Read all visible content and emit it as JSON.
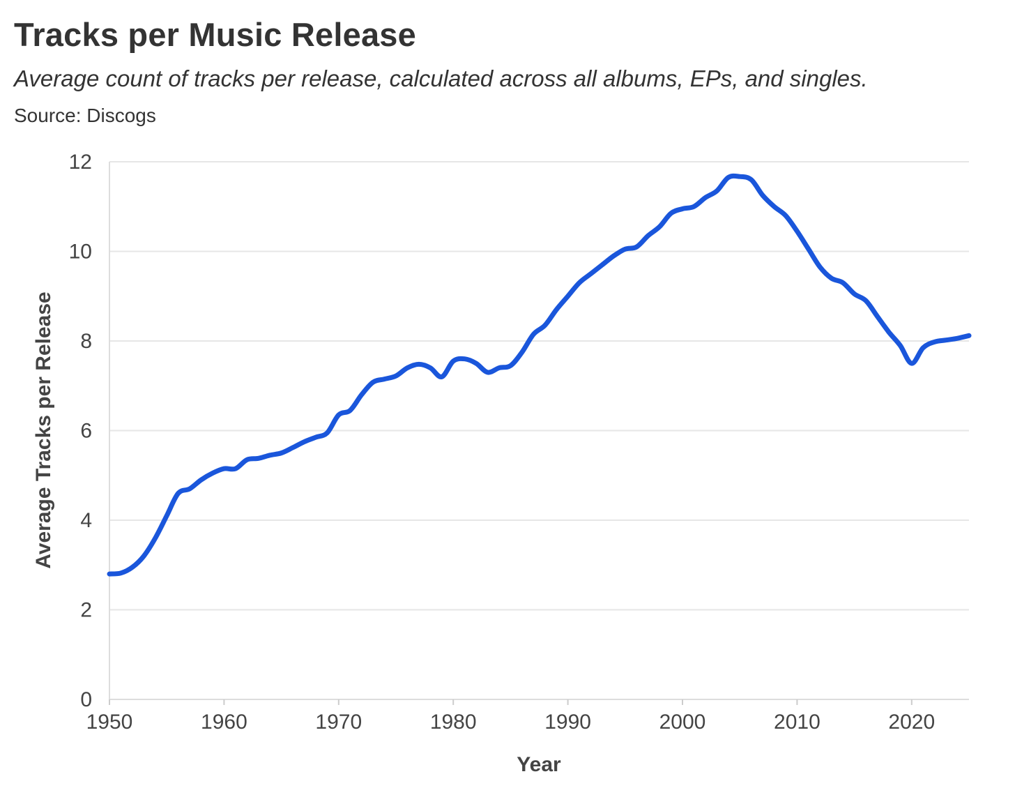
{
  "title": "Tracks per Music Release",
  "subtitle": "Average count of tracks per release, calculated across all albums, EPs, and singles.",
  "source": "Source: Discogs",
  "colors": {
    "line": "#1a56db",
    "grid": "#e6e6e6",
    "text": "#333333"
  },
  "chart_data": {
    "type": "line",
    "title": "Tracks per Music Release",
    "xlabel": "Year",
    "ylabel": "Average Tracks per Release",
    "xlim": [
      1950,
      2025
    ],
    "ylim": [
      0,
      12
    ],
    "xticks": [
      1950,
      1960,
      1970,
      1980,
      1990,
      2000,
      2010,
      2020
    ],
    "yticks": [
      0,
      2,
      4,
      6,
      8,
      10,
      12
    ],
    "grid": true,
    "series": [
      {
        "name": "Average tracks per release",
        "x": [
          1950,
          1951,
          1952,
          1953,
          1954,
          1955,
          1956,
          1957,
          1958,
          1959,
          1960,
          1961,
          1962,
          1963,
          1964,
          1965,
          1966,
          1967,
          1968,
          1969,
          1970,
          1971,
          1972,
          1973,
          1974,
          1975,
          1976,
          1977,
          1978,
          1979,
          1980,
          1981,
          1982,
          1983,
          1984,
          1985,
          1986,
          1987,
          1988,
          1989,
          1990,
          1991,
          1992,
          1993,
          1994,
          1995,
          1996,
          1997,
          1998,
          1999,
          2000,
          2001,
          2002,
          2003,
          2004,
          2005,
          2006,
          2007,
          2008,
          2009,
          2010,
          2011,
          2012,
          2013,
          2014,
          2015,
          2016,
          2017,
          2018,
          2019,
          2020,
          2021,
          2022,
          2023,
          2024,
          2025
        ],
        "values": [
          2.8,
          2.82,
          2.95,
          3.2,
          3.6,
          4.1,
          4.6,
          4.7,
          4.9,
          5.05,
          5.15,
          5.15,
          5.35,
          5.38,
          5.45,
          5.5,
          5.62,
          5.75,
          5.85,
          5.95,
          6.35,
          6.45,
          6.8,
          7.08,
          7.15,
          7.22,
          7.4,
          7.48,
          7.4,
          7.2,
          7.55,
          7.6,
          7.5,
          7.3,
          7.4,
          7.45,
          7.75,
          8.15,
          8.35,
          8.7,
          9.0,
          9.3,
          9.5,
          9.7,
          9.9,
          10.05,
          10.1,
          10.35,
          10.55,
          10.85,
          10.95,
          11.0,
          11.2,
          11.35,
          11.65,
          11.67,
          11.6,
          11.25,
          11.0,
          10.8,
          10.45,
          10.05,
          9.65,
          9.4,
          9.3,
          9.05,
          8.9,
          8.55,
          8.2,
          7.9,
          7.5,
          7.85,
          7.98,
          8.02,
          8.06,
          8.12
        ]
      }
    ]
  }
}
